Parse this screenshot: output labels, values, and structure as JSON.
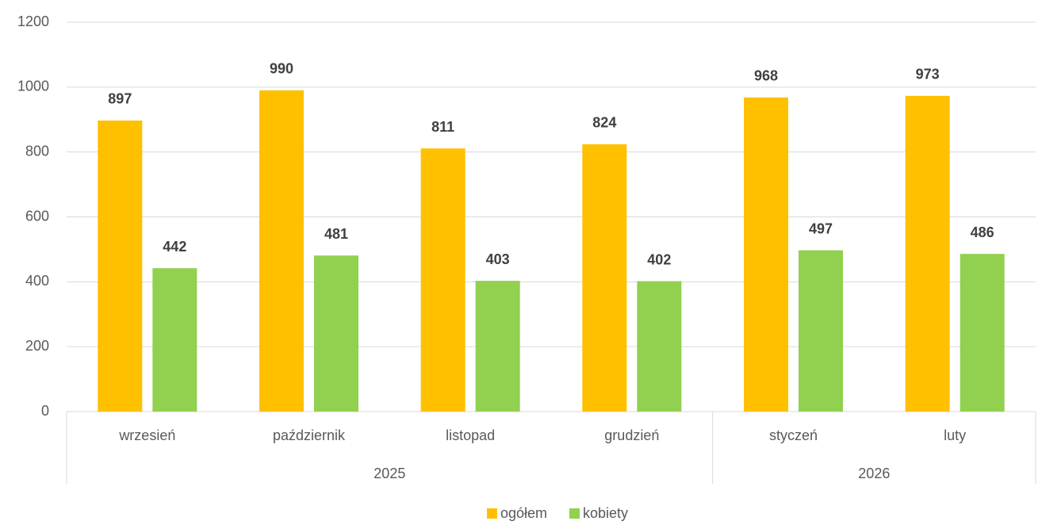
{
  "chart_data": {
    "type": "bar",
    "categories": [
      "wrzesień",
      "październik",
      "listopad",
      "grudzień",
      "styczeń",
      "luty"
    ],
    "groups": [
      {
        "label": "2025",
        "size": 4
      },
      {
        "label": "2026",
        "size": 2
      }
    ],
    "series": [
      {
        "name": "ogółem",
        "color": "#ffc000",
        "values": [
          897,
          990,
          811,
          824,
          968,
          973
        ]
      },
      {
        "name": "kobiety",
        "color": "#92d050",
        "values": [
          442,
          481,
          403,
          402,
          497,
          486
        ]
      }
    ],
    "ylim": [
      0,
      1200
    ],
    "yticks": [
      0,
      200,
      400,
      600,
      800,
      1000,
      1200
    ],
    "grid": true,
    "legend": "bottom"
  }
}
